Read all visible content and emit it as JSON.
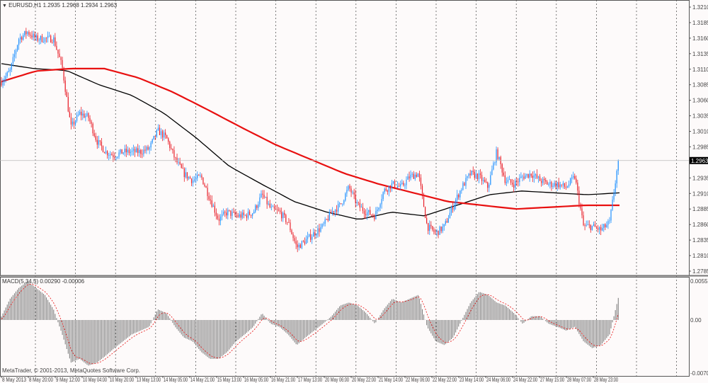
{
  "header": {
    "symbol": "EURUSD,H1",
    "ohlc": "1.2935 1.2968 1.2934 1.2963",
    "dropdown_icon": "triangle-down-icon"
  },
  "indicator": {
    "label": "MACD(5,34,5) 0.00290 -0.00006"
  },
  "copyright": "MetaTrader, © 2001-2013, MetaQuotes Software Corp.",
  "colors": {
    "bull": "#1e90ff",
    "bear": "#e8202a",
    "sma_fast": "#000000",
    "sma_slow": "#e81010",
    "histogram": "#777777",
    "signal": "#e81010",
    "current_price_bg": "#000000"
  },
  "chart_data": {
    "type": "candlestick",
    "symbol": "EURUSD",
    "timeframe": "H1",
    "current_price": 1.2963,
    "price_axis": [
      "1.3210",
      "1.3185",
      "1.3160",
      "1.3135",
      "1.3110",
      "1.3085",
      "1.3060",
      "1.3035",
      "1.3010",
      "1.2985",
      "1.2935",
      "1.2910",
      "1.2885",
      "1.2860",
      "1.2835",
      "1.2810",
      "1.2785"
    ],
    "price_range": [
      1.2785,
      1.321
    ],
    "macd_axis": [
      "0.00552",
      "0.00",
      "-0.00705"
    ],
    "macd_range": [
      -0.00705,
      0.00552
    ],
    "time_labels": [
      "8 May 2013",
      "8 May 20:00",
      "9 May 12:00",
      "10 May 04:00",
      "10 May 20:00",
      "13 May 13:00",
      "14 May 05:00",
      "14 May 21:00",
      "15 May 13:00",
      "16 May 05:00",
      "16 May 21:00",
      "17 May 13:00",
      "20 May 06:00",
      "20 May 22:00",
      "21 May 14:00",
      "22 May 06:00",
      "22 May 22:00",
      "23 May 14:00",
      "24 May 06:00",
      "24 May 22:00",
      "27 May 15:00",
      "28 May 07:00",
      "28 May 23:00"
    ],
    "closes": [
      1.309,
      1.3107,
      1.3159,
      1.317,
      1.3159,
      1.3159,
      1.3159,
      1.3113,
      1.3016,
      1.3039,
      1.3033,
      1.2994,
      1.2977,
      1.2971,
      1.2977,
      1.2977,
      1.2977,
      1.2982,
      1.3011,
      1.2999,
      1.2965,
      1.2942,
      1.2931,
      1.2937,
      1.2902,
      1.2868,
      1.288,
      1.2874,
      1.2874,
      1.288,
      1.2908,
      1.2885,
      1.288,
      1.2863,
      1.2823,
      1.2834,
      1.2846,
      1.2857,
      1.288,
      1.2891,
      1.292,
      1.2891,
      1.288,
      1.2874,
      1.2914,
      1.2925,
      1.292,
      1.2937,
      1.2942,
      1.2857,
      1.2846,
      1.2857,
      1.2891,
      1.292,
      1.2942,
      1.2937,
      1.292,
      1.2977,
      1.2931,
      1.2925,
      1.2937,
      1.2942,
      1.2931,
      1.2925,
      1.2925,
      1.292,
      1.2937,
      1.2857,
      1.2857,
      1.2851,
      1.2863,
      1.2962
    ],
    "sma_fast": [
      1.3119,
      1.3111,
      1.3108,
      1.3085,
      1.3068,
      1.3039,
      1.2999,
      1.2954,
      1.2925,
      1.2897,
      1.288,
      1.2868,
      1.288,
      1.2874,
      1.2891,
      1.2908,
      1.2914,
      1.2911,
      1.2908,
      1.2911
    ],
    "sma_slow": [
      1.309,
      1.3107,
      1.3111,
      1.3111,
      1.3096,
      1.3073,
      1.3045,
      1.3016,
      1.2988,
      1.2965,
      1.2942,
      1.2925,
      1.2911,
      1.2897,
      1.2891,
      1.2885,
      1.2888,
      1.2891,
      1.2891
    ],
    "macd_hist": [
      0.00047,
      0.0028,
      0.0042,
      0.0051,
      0.0042,
      0.0033,
      0.0014,
      -0.0019,
      -0.0056,
      -0.0051,
      -0.006,
      -0.0056,
      -0.0047,
      -0.0037,
      -0.0028,
      -0.0019,
      -0.0014,
      -0.0009,
      0.0014,
      0.0009,
      -0.0009,
      -0.0023,
      -0.0028,
      -0.0042,
      -0.0051,
      -0.0051,
      -0.0042,
      -0.0028,
      -0.0019,
      -0.0009,
      0.0009,
      -0.0005,
      -0.0009,
      -0.0019,
      -0.0033,
      -0.0023,
      -0.0014,
      -0.0005,
      0.0005,
      0.0019,
      0.0023,
      0.0019,
      0.0009,
      -0.0005,
      0.0014,
      0.0028,
      0.0023,
      0.0028,
      0.0033,
      -0.0009,
      -0.0028,
      -0.0033,
      -0.0023,
      0.0,
      0.0023,
      0.0037,
      0.0033,
      0.0023,
      0.0019,
      0.0009,
      -0.0005,
      0.0005,
      0.0005,
      -0.0005,
      -0.0009,
      -0.0014,
      -0.0009,
      -0.0028,
      -0.0037,
      -0.0033,
      -0.0019,
      0.0029
    ]
  }
}
